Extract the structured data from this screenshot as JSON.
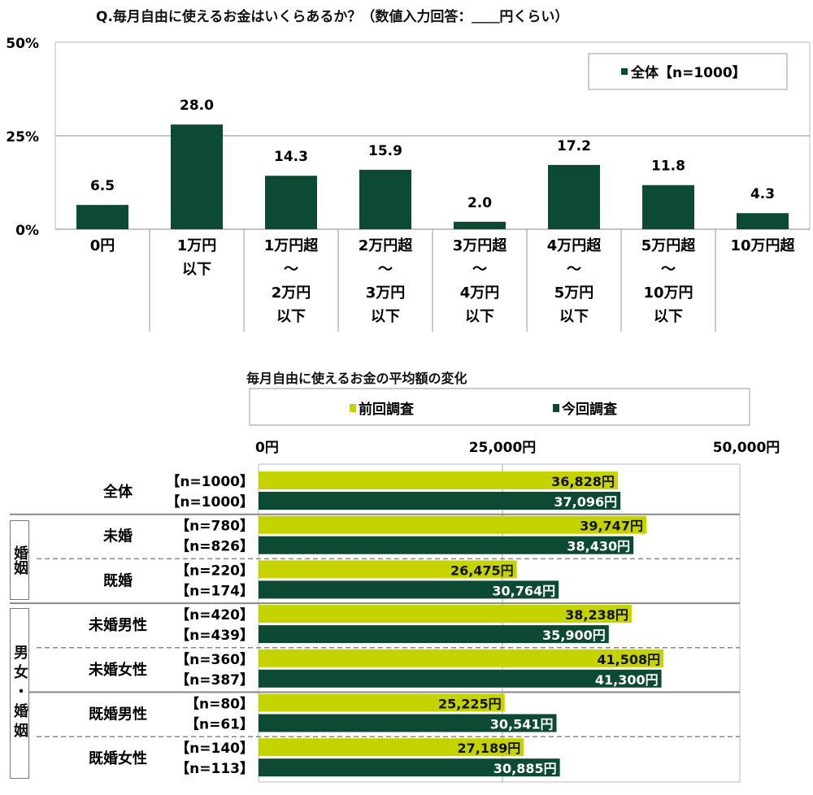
{
  "chart_data": [
    {
      "type": "bar",
      "title": "Q.毎月自由に使えるお金はいくらあるか？（数値入力回答：＿＿円くらい）",
      "categories": [
        "0円",
        "1万円\n以下",
        "1万円超\n～\n2万円\n以下",
        "2万円超\n～\n3万円\n以下",
        "3万円超\n～\n4万円\n以下",
        "4万円超\n～\n5万円\n以下",
        "5万円超\n～\n10万円\n以下",
        "10万円超"
      ],
      "series": [
        {
          "name": "全体【n=1000】",
          "values": [
            6.5,
            28.0,
            14.3,
            15.9,
            2.0,
            17.2,
            11.8,
            4.3
          ],
          "color": "#0d4a34"
        }
      ],
      "yticks": [
        "0%",
        "25%",
        "50%"
      ],
      "ylim": [
        0,
        50
      ],
      "grid": true,
      "legend": "top-right"
    },
    {
      "type": "bar",
      "orientation": "horizontal",
      "title": "毎月自由に使えるお金の平均額の変化",
      "xticks": [
        "0円",
        "25,000円",
        "50,000円"
      ],
      "xlim": [
        0,
        50000
      ],
      "legend": "top",
      "series_names": [
        "前回調査",
        "今回調査"
      ],
      "colors": [
        "#c5d400",
        "#0d4a34"
      ],
      "groups": [
        {
          "label": "全体",
          "section": "",
          "n": [
            "【n=1000】",
            "【n=1000】"
          ],
          "values": [
            36828,
            37096
          ],
          "labels": [
            "36,828円",
            "37,096円"
          ]
        },
        {
          "label": "未婚",
          "section": "婚姻",
          "n": [
            "【n=780】",
            "【n=826】"
          ],
          "values": [
            39747,
            38430
          ],
          "labels": [
            "39,747円",
            "38,430円"
          ]
        },
        {
          "label": "既婚",
          "section": "婚姻",
          "n": [
            "【n=220】",
            "【n=174】"
          ],
          "values": [
            26475,
            30764
          ],
          "labels": [
            "26,475円",
            "30,764円"
          ]
        },
        {
          "label": "未婚男性",
          "section": "男女・婚姻",
          "n": [
            "【n=420】",
            "【n=439】"
          ],
          "values": [
            38238,
            35900
          ],
          "labels": [
            "38,238円",
            "35,900円"
          ]
        },
        {
          "label": "未婚女性",
          "section": "男女・婚姻",
          "n": [
            "【n=360】",
            "【n=387】"
          ],
          "values": [
            41508,
            41300
          ],
          "labels": [
            "41,508円",
            "41,300円"
          ]
        },
        {
          "label": "既婚男性",
          "section": "男女・婚姻",
          "n": [
            "【n=80】",
            "【n=61】"
          ],
          "values": [
            25225,
            30541
          ],
          "labels": [
            "25,225円",
            "30,541円"
          ]
        },
        {
          "label": "既婚女性",
          "section": "男女・婚姻",
          "n": [
            "【n=140】",
            "【n=113】"
          ],
          "values": [
            27189,
            30885
          ],
          "labels": [
            "27,189円",
            "30,885円"
          ]
        }
      ],
      "sections": [
        "婚姻",
        "男女・婚姻"
      ]
    }
  ]
}
